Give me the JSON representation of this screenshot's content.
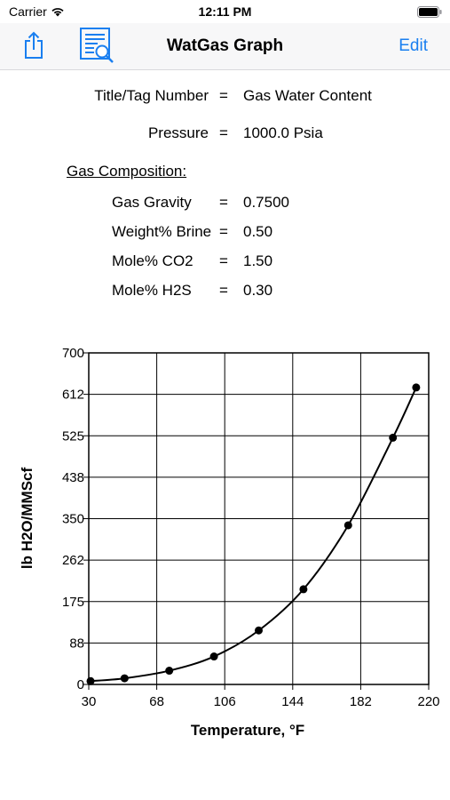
{
  "status_bar": {
    "carrier": "Carrier",
    "time": "12:11 PM"
  },
  "nav": {
    "title": "WatGas Graph",
    "edit_label": "Edit"
  },
  "info": {
    "title_label": "Title/Tag Number",
    "title_value": "Gas Water Content",
    "pressure_label": "Pressure",
    "pressure_value": "1000.0 Psia",
    "equals": "=",
    "composition_heading": "Gas Composition:",
    "composition": [
      {
        "label": "Gas Gravity",
        "value": "0.7500"
      },
      {
        "label": "Weight% Brine",
        "value": "0.50"
      },
      {
        "label": "Mole% CO2",
        "value": "1.50"
      },
      {
        "label": "Mole% H2S",
        "value": "0.30"
      }
    ]
  },
  "chart_data": {
    "type": "line",
    "xlabel": "Temperature, °F",
    "ylabel": "lb H2O/MMScf",
    "xlim": [
      30,
      220
    ],
    "ylim": [
      0,
      700
    ],
    "x_ticks": [
      "30",
      "68",
      "106",
      "144",
      "182",
      "220"
    ],
    "y_ticks": [
      "0",
      "88",
      "175",
      "262",
      "350",
      "438",
      "525",
      "612",
      "700"
    ],
    "grid": true,
    "series": [
      {
        "x": [
          31,
          50,
          75,
          100,
          125,
          150,
          175,
          200,
          213
        ],
        "y": [
          7,
          13,
          29,
          59,
          114,
          201,
          336,
          521,
          627
        ]
      }
    ]
  }
}
